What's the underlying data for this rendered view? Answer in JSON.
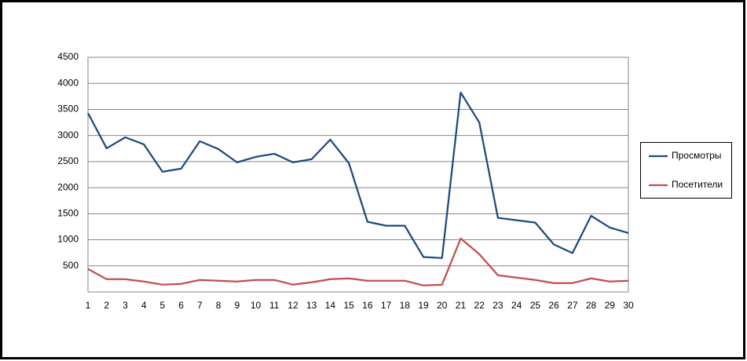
{
  "chart_data": {
    "type": "line",
    "categories": [
      "1",
      "2",
      "3",
      "4",
      "5",
      "6",
      "7",
      "8",
      "9",
      "10",
      "11",
      "12",
      "13",
      "14",
      "15",
      "16",
      "17",
      "18",
      "19",
      "20",
      "21",
      "22",
      "23",
      "24",
      "25",
      "26",
      "27",
      "28",
      "29",
      "30"
    ],
    "series": [
      {
        "name": "Просмотры",
        "color": "#1f497d",
        "values": [
          3430,
          2755,
          2965,
          2830,
          2305,
          2365,
          2890,
          2740,
          2485,
          2590,
          2650,
          2485,
          2545,
          2920,
          2470,
          1345,
          1270,
          1270,
          670,
          650,
          3825,
          3250,
          1420,
          1375,
          1330,
          910,
          745,
          1460,
          1235,
          1130
        ]
      },
      {
        "name": "Посетители",
        "color": "#c0504d",
        "values": [
          440,
          245,
          245,
          200,
          140,
          155,
          230,
          215,
          200,
          230,
          230,
          140,
          185,
          245,
          260,
          215,
          215,
          215,
          125,
          140,
          1025,
          725,
          320,
          275,
          230,
          170,
          170,
          260,
          200,
          215
        ]
      }
    ],
    "ylim": [
      0,
      4500
    ],
    "yticks": [
      500,
      1000,
      1500,
      2000,
      2500,
      3000,
      3500,
      4000,
      4500
    ],
    "grid": true,
    "legend": "right"
  }
}
